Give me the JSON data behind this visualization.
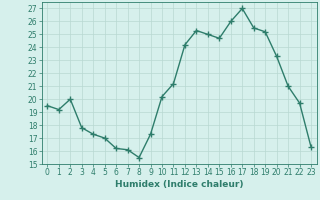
{
  "x": [
    0,
    1,
    2,
    3,
    4,
    5,
    6,
    7,
    8,
    9,
    10,
    11,
    12,
    13,
    14,
    15,
    16,
    17,
    18,
    19,
    20,
    21,
    22,
    23
  ],
  "y": [
    19.5,
    19.2,
    20.0,
    17.8,
    17.3,
    17.0,
    16.2,
    16.1,
    15.5,
    17.3,
    20.2,
    21.2,
    24.2,
    25.3,
    25.0,
    24.7,
    26.0,
    27.0,
    25.5,
    25.2,
    23.3,
    21.0,
    19.7,
    16.3
  ],
  "line_color": "#2e7d6b",
  "marker": "+",
  "marker_size": 4,
  "marker_lw": 1.0,
  "bg_color": "#d6f0ec",
  "grid_color": "#b8d8d2",
  "xlabel": "Humidex (Indice chaleur)",
  "xlim": [
    -0.5,
    23.5
  ],
  "ylim": [
    15,
    27.5
  ],
  "yticks": [
    15,
    16,
    17,
    18,
    19,
    20,
    21,
    22,
    23,
    24,
    25,
    26,
    27
  ],
  "xticks": [
    0,
    1,
    2,
    3,
    4,
    5,
    6,
    7,
    8,
    9,
    10,
    11,
    12,
    13,
    14,
    15,
    16,
    17,
    18,
    19,
    20,
    21,
    22,
    23
  ],
  "xlabel_fontsize": 6.5,
  "tick_fontsize": 5.5,
  "line_width": 1.0
}
